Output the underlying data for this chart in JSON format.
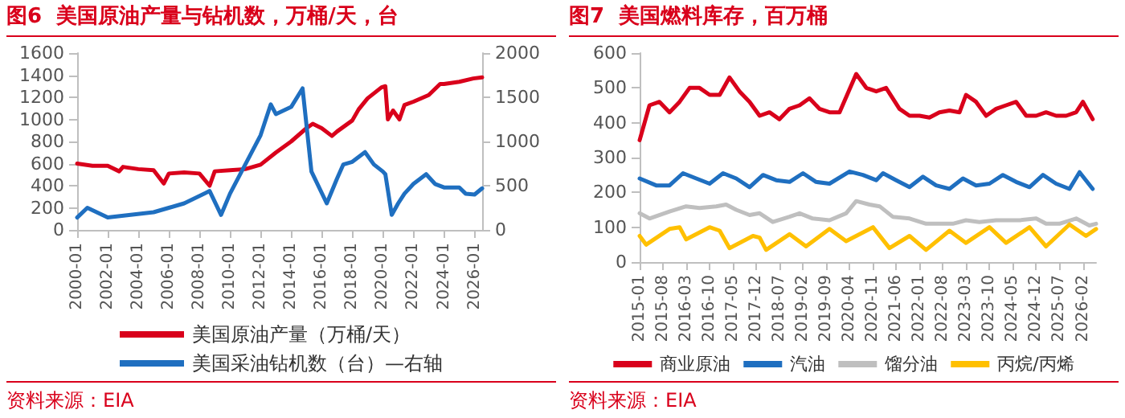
{
  "chart_data": [
    {
      "type": "line",
      "title": "图6  美国原油产量与钻机数，万桶/天，台",
      "annotations": [
        "资料来源：EIA"
      ],
      "xlim": [
        "2000-01",
        "2026-07"
      ],
      "xticks": [
        "2000-01",
        "2002-01",
        "2004-01",
        "2006-01",
        "2008-01",
        "2010-01",
        "2012-01",
        "2014-01",
        "2016-01",
        "2018-01",
        "2020-01",
        "2022-01",
        "2024-01",
        "2026-01"
      ],
      "ylim": [
        0,
        1600
      ],
      "yticks": [
        0,
        200,
        400,
        600,
        800,
        1000,
        1200,
        1400,
        1600
      ],
      "y2lim": [
        0,
        2000
      ],
      "y2ticks": [
        0,
        500,
        1000,
        1500,
        2000
      ],
      "grid": false,
      "legend": "bottom",
      "marker": "none",
      "line_style": "solid",
      "series": [
        {
          "name": "美国原油产量（万桶/天）",
          "color": "#d9001b",
          "x": [
            "2000-01",
            "2001-01",
            "2002-01",
            "2002-10",
            "2003-01",
            "2004-01",
            "2005-01",
            "2005-09",
            "2006-01",
            "2007-01",
            "2008-01",
            "2008-09",
            "2009-01",
            "2010-01",
            "2011-01",
            "2012-01",
            "2013-01",
            "2014-01",
            "2015-01",
            "2015-06",
            "2016-01",
            "2016-09",
            "2017-01",
            "2018-01",
            "2018-06",
            "2019-01",
            "2019-12",
            "2020-03",
            "2020-05",
            "2020-09",
            "2021-02",
            "2021-06",
            "2022-01",
            "2023-01",
            "2023-10",
            "2024-01",
            "2025-01",
            "2025-12",
            "2026-07"
          ],
          "values": [
            600,
            580,
            580,
            530,
            570,
            550,
            540,
            420,
            510,
            520,
            510,
            400,
            530,
            540,
            550,
            590,
            700,
            800,
            920,
            960,
            920,
            850,
            890,
            990,
            1090,
            1190,
            1290,
            1300,
            1000,
            1080,
            1000,
            1130,
            1160,
            1220,
            1320,
            1320,
            1340,
            1370,
            1380
          ]
        },
        {
          "name": "美国采油钻机数（台）—右轴",
          "color": "#1f6fc0",
          "axis": "y2",
          "x": [
            "2000-01",
            "2000-09",
            "2002-01",
            "2005-01",
            "2006-01",
            "2007-01",
            "2008-09",
            "2009-06",
            "2010-01",
            "2011-01",
            "2012-01",
            "2012-09",
            "2013-01",
            "2014-01",
            "2014-10",
            "2015-05",
            "2016-05",
            "2017-01",
            "2017-06",
            "2018-01",
            "2018-11",
            "2019-06",
            "2020-01",
            "2020-03",
            "2020-08",
            "2021-01",
            "2021-06",
            "2022-01",
            "2022-11",
            "2023-06",
            "2024-01",
            "2025-01",
            "2025-06",
            "2026-01",
            "2026-07"
          ],
          "values": [
            140,
            250,
            140,
            200,
            250,
            300,
            440,
            170,
            410,
            740,
            1070,
            1420,
            1310,
            1390,
            1600,
            660,
            300,
            580,
            740,
            770,
            880,
            740,
            660,
            630,
            170,
            300,
            410,
            520,
            630,
            520,
            480,
            480,
            410,
            400,
            470
          ]
        }
      ]
    },
    {
      "type": "line",
      "title": "图7  美国燃料库存，百万桶",
      "annotations": [
        "资料来源：EIA"
      ],
      "xlim": [
        "2015-01",
        "2026-06"
      ],
      "xticks": [
        "2015-01",
        "2015-08",
        "2016-03",
        "2016-10",
        "2017-05",
        "2017-12",
        "2018-07",
        "2019-02",
        "2019-09",
        "2020-04",
        "2020-11",
        "2021-06",
        "2022-01",
        "2022-08",
        "2023-03",
        "2023-10",
        "2024-05",
        "2024-12",
        "2025-07",
        "2026-02"
      ],
      "ylim": [
        0,
        600
      ],
      "yticks": [
        0,
        100,
        200,
        300,
        400,
        500,
        600
      ],
      "grid": false,
      "legend": "bottom",
      "marker": "none",
      "line_style": "solid",
      "series": [
        {
          "name": "商业原油",
          "color": "#d9001b",
          "x": [
            "2015-01",
            "2015-04",
            "2015-07",
            "2015-10",
            "2016-01",
            "2016-04",
            "2016-07",
            "2016-10",
            "2017-01",
            "2017-04",
            "2017-07",
            "2017-10",
            "2018-01",
            "2018-04",
            "2018-07",
            "2018-10",
            "2019-01",
            "2019-04",
            "2019-07",
            "2019-10",
            "2020-01",
            "2020-06",
            "2020-09",
            "2020-12",
            "2021-03",
            "2021-07",
            "2021-10",
            "2022-01",
            "2022-04",
            "2022-07",
            "2022-10",
            "2023-01",
            "2023-03",
            "2023-06",
            "2023-09",
            "2023-12",
            "2024-03",
            "2024-06",
            "2024-09",
            "2024-12",
            "2025-03",
            "2025-06",
            "2025-09",
            "2025-12",
            "2026-02",
            "2026-05"
          ],
          "values": [
            350,
            450,
            460,
            430,
            460,
            500,
            500,
            480,
            480,
            530,
            490,
            460,
            420,
            430,
            410,
            440,
            450,
            470,
            440,
            430,
            430,
            540,
            500,
            490,
            500,
            440,
            420,
            420,
            415,
            430,
            435,
            430,
            480,
            460,
            420,
            440,
            450,
            460,
            420,
            420,
            430,
            420,
            420,
            430,
            460,
            410
          ]
        },
        {
          "name": "汽油",
          "color": "#1f6fc0",
          "x": [
            "2015-01",
            "2015-06",
            "2015-10",
            "2016-02",
            "2016-06",
            "2016-10",
            "2017-02",
            "2017-06",
            "2017-10",
            "2018-02",
            "2018-06",
            "2018-10",
            "2019-02",
            "2019-06",
            "2019-10",
            "2020-04",
            "2020-08",
            "2020-12",
            "2021-02",
            "2021-06",
            "2021-10",
            "2022-02",
            "2022-06",
            "2022-10",
            "2023-02",
            "2023-06",
            "2023-10",
            "2024-02",
            "2024-06",
            "2024-10",
            "2025-02",
            "2025-06",
            "2025-10",
            "2026-01",
            "2026-05"
          ],
          "values": [
            240,
            220,
            220,
            255,
            240,
            225,
            255,
            240,
            215,
            250,
            235,
            230,
            255,
            230,
            225,
            260,
            250,
            235,
            255,
            235,
            215,
            245,
            220,
            210,
            240,
            220,
            225,
            250,
            230,
            215,
            250,
            225,
            210,
            258,
            210
          ]
        },
        {
          "name": "馏分油",
          "color": "#bfbfbf",
          "x": [
            "2015-01",
            "2015-04",
            "2015-10",
            "2016-03",
            "2016-07",
            "2016-12",
            "2017-03",
            "2017-06",
            "2017-10",
            "2018-01",
            "2018-05",
            "2018-10",
            "2019-01",
            "2019-05",
            "2019-10",
            "2020-03",
            "2020-06",
            "2020-10",
            "2021-01",
            "2021-05",
            "2021-10",
            "2022-03",
            "2022-07",
            "2022-11",
            "2023-03",
            "2023-07",
            "2023-12",
            "2024-03",
            "2024-07",
            "2024-12",
            "2025-03",
            "2025-07",
            "2025-12",
            "2026-04",
            "2026-06"
          ],
          "values": [
            140,
            125,
            145,
            160,
            155,
            160,
            165,
            150,
            135,
            140,
            115,
            130,
            140,
            125,
            120,
            140,
            175,
            165,
            160,
            130,
            125,
            110,
            110,
            110,
            120,
            115,
            120,
            120,
            120,
            125,
            110,
            110,
            125,
            105,
            110
          ]
        },
        {
          "name": "丙烷/丙烯",
          "color": "#ffc000",
          "x": [
            "2015-01",
            "2015-03",
            "2015-10",
            "2016-01",
            "2016-03",
            "2016-10",
            "2017-01",
            "2017-04",
            "2017-11",
            "2018-01",
            "2018-03",
            "2018-10",
            "2019-03",
            "2019-10",
            "2020-03",
            "2020-11",
            "2021-04",
            "2021-10",
            "2022-03",
            "2022-10",
            "2023-03",
            "2023-10",
            "2024-03",
            "2024-10",
            "2025-03",
            "2025-10",
            "2026-03",
            "2026-06"
          ],
          "values": [
            75,
            50,
            95,
            100,
            65,
            100,
            90,
            40,
            75,
            70,
            35,
            80,
            45,
            95,
            60,
            100,
            40,
            75,
            35,
            90,
            55,
            100,
            55,
            100,
            45,
            108,
            75,
            95
          ]
        }
      ]
    }
  ]
}
